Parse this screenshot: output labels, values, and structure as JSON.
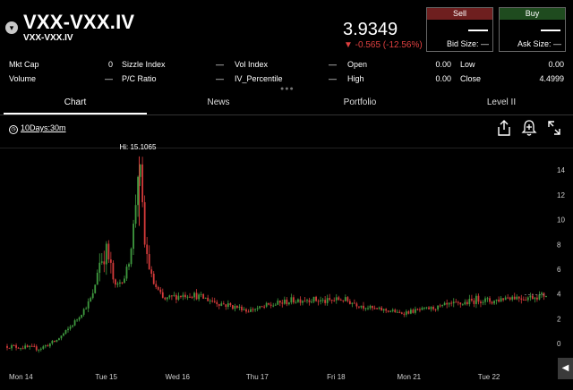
{
  "header": {
    "symbol": "VXX-VXX.IV",
    "subsymbol": "VXX-VXX.IV",
    "price": "3.9349",
    "change": "▼ -0.565 (-12.56%)"
  },
  "trade": {
    "sell_label": "Sell",
    "buy_label": "Buy",
    "bid_value": "—",
    "ask_value": "—",
    "bid_size_label": "Bid Size: —",
    "ask_size_label": "Ask Size: —"
  },
  "stats": {
    "mkt_cap_label": "Mkt Cap",
    "mkt_cap_value": "0",
    "sizzle_label": "Sizzle Index",
    "sizzle_value": "—",
    "vol_index_label": "Vol Index",
    "vol_index_value": "—",
    "open_label": "Open",
    "open_value": "0.00",
    "low_label": "Low",
    "low_value": "0.00",
    "volume_label": "Volume",
    "volume_value": "—",
    "pc_ratio_label": "P/C Ratio",
    "pc_ratio_value": "—",
    "iv_pct_label": "IV_Percentile",
    "iv_pct_value": "—",
    "high_label": "High",
    "high_value": "0.00",
    "close_label": "Close",
    "close_value": "4.4999"
  },
  "tabs": [
    "Chart",
    "News",
    "Portfolio",
    "Level II"
  ],
  "active_tab": "Chart",
  "toolbar": {
    "range_label": "10Days:30m"
  },
  "chart_data": {
    "type": "candlestick",
    "annotations": [
      "Hi: 15.1065"
    ],
    "high_marker": 15.1065,
    "y_ticks": [
      0,
      2,
      4,
      6,
      8,
      10,
      12,
      14
    ],
    "ylim": [
      -1,
      15.6
    ],
    "last_price": 3.9349,
    "x_labels": [
      {
        "label": "Mon 14",
        "pos": 0.0
      },
      {
        "label": "Tue 15",
        "pos": 0.16
      },
      {
        "label": "Wed 16",
        "pos": 0.29
      },
      {
        "label": "Thu 17",
        "pos": 0.44
      },
      {
        "label": "Fri 18",
        "pos": 0.59
      },
      {
        "label": "Mon 21",
        "pos": 0.72
      },
      {
        "label": "Tue 22",
        "pos": 0.87
      }
    ],
    "series": [
      {
        "segment": "Mon 14",
        "x_range": [
          0.0,
          0.16
        ],
        "points": [
          [
            0.0,
            -0.2
          ],
          [
            0.06,
            -0.4
          ],
          [
            0.09,
            0.2
          ],
          [
            0.11,
            1.0
          ],
          [
            0.13,
            2.0
          ],
          [
            0.15,
            3.2
          ]
        ]
      },
      {
        "segment": "Tue 15",
        "x_range": [
          0.16,
          0.29
        ],
        "points": [
          [
            0.16,
            4.0
          ],
          [
            0.17,
            6.5
          ],
          [
            0.185,
            7.5
          ],
          [
            0.2,
            4.5
          ],
          [
            0.22,
            5.5
          ],
          [
            0.235,
            9.5
          ],
          [
            0.245,
            15.1
          ],
          [
            0.255,
            8.0
          ],
          [
            0.27,
            5.0
          ],
          [
            0.29,
            3.5
          ]
        ]
      },
      {
        "segment": "Wed 16",
        "x_range": [
          0.29,
          0.44
        ],
        "points": [
          [
            0.29,
            3.5
          ],
          [
            0.31,
            3.8
          ],
          [
            0.34,
            4.0
          ],
          [
            0.37,
            3.6
          ],
          [
            0.4,
            3.2
          ],
          [
            0.44,
            2.8
          ]
        ]
      },
      {
        "segment": "Thu 17",
        "x_range": [
          0.44,
          0.59
        ],
        "points": [
          [
            0.44,
            2.6
          ],
          [
            0.47,
            2.9
          ],
          [
            0.5,
            3.2
          ],
          [
            0.53,
            3.5
          ],
          [
            0.56,
            3.6
          ],
          [
            0.59,
            3.4
          ]
        ]
      },
      {
        "segment": "Fri 18",
        "x_range": [
          0.59,
          0.72
        ],
        "points": [
          [
            0.59,
            3.4
          ],
          [
            0.62,
            3.6
          ],
          [
            0.65,
            3.2
          ],
          [
            0.68,
            2.8
          ],
          [
            0.72,
            2.6
          ]
        ]
      },
      {
        "segment": "Mon 21",
        "x_range": [
          0.72,
          0.87
        ],
        "points": [
          [
            0.72,
            2.4
          ],
          [
            0.75,
            2.6
          ],
          [
            0.78,
            2.8
          ],
          [
            0.81,
            3.0
          ],
          [
            0.84,
            3.2
          ],
          [
            0.87,
            3.5
          ]
        ]
      },
      {
        "segment": "Tue 22",
        "x_range": [
          0.87,
          1.0
        ],
        "points": [
          [
            0.87,
            3.6
          ],
          [
            0.9,
            3.4
          ],
          [
            0.93,
            3.8
          ],
          [
            0.96,
            3.7
          ],
          [
            1.0,
            3.93
          ]
        ]
      }
    ],
    "colors": {
      "up": "#3f9a3f",
      "down": "#d33a3a",
      "axis": "#ffffff",
      "label": "#cfcfcf"
    }
  }
}
